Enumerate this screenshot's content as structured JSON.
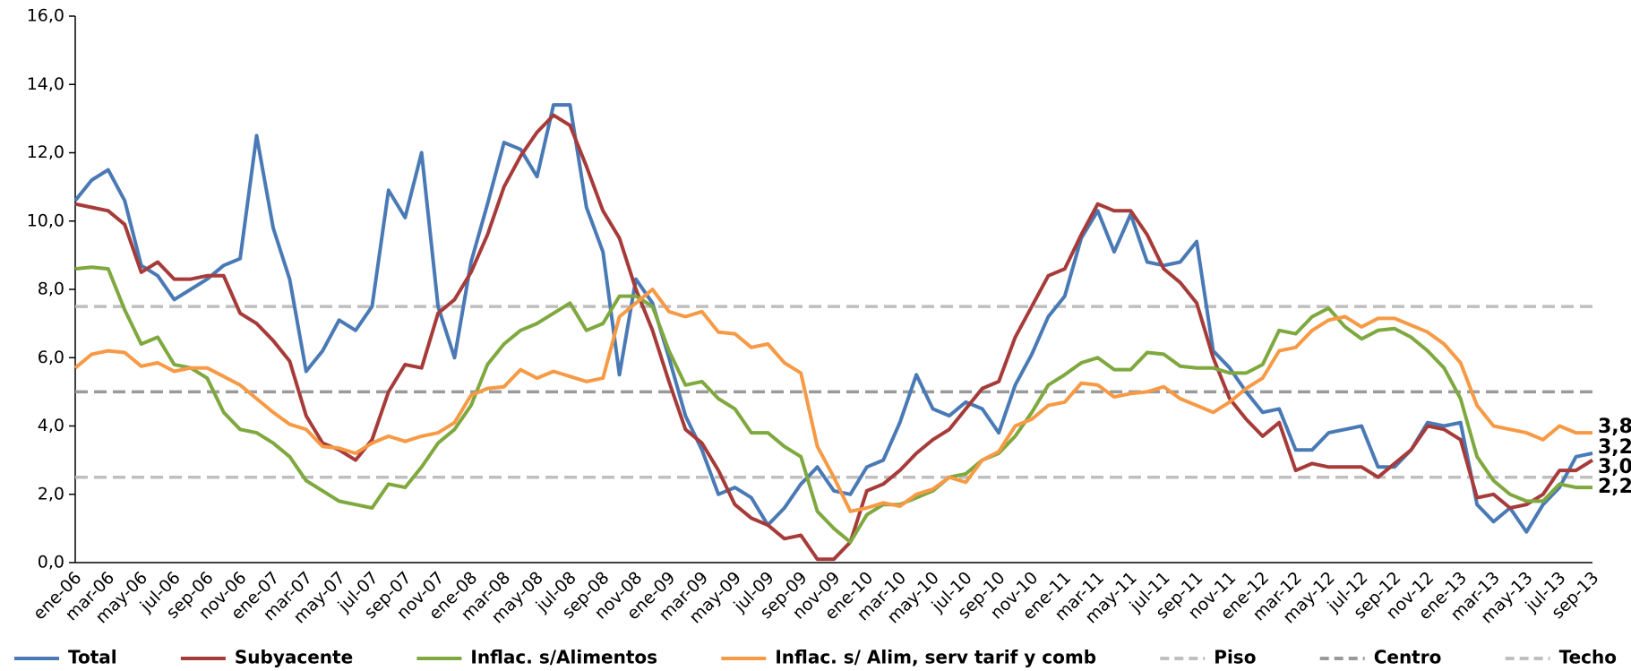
{
  "chart_data": {
    "type": "line",
    "categories": [
      "ene-06",
      null,
      "mar-06",
      null,
      "may-06",
      null,
      "jul-06",
      null,
      "sep-06",
      null,
      "nov-06",
      null,
      "ene-07",
      null,
      "mar-07",
      null,
      "may-07",
      null,
      "jul-07",
      null,
      "sep-07",
      null,
      "nov-07",
      null,
      "ene-08",
      null,
      "mar-08",
      null,
      "may-08",
      null,
      "jul-08",
      null,
      "sep-08",
      null,
      "nov-08",
      null,
      "ene-09",
      null,
      "mar-09",
      null,
      "may-09",
      null,
      "jul-09",
      null,
      "sep-09",
      null,
      "nov-09",
      null,
      "ene-10",
      null,
      "mar-10",
      null,
      "may-10",
      null,
      "jul-10",
      null,
      "sep-10",
      null,
      "nov-10",
      null,
      "ene-11",
      null,
      "mar-11",
      null,
      "may-11",
      null,
      "jul-11",
      null,
      "sep-11",
      null,
      "nov-11",
      null,
      "ene-12",
      null,
      "mar-12",
      null,
      "may-12",
      null,
      "jul-12",
      null,
      "sep-12",
      null,
      "nov-12",
      null,
      "ene-13",
      null,
      "mar-13",
      null,
      "may-13",
      null,
      "jul-13",
      null,
      "sep-13"
    ],
    "series": [
      {
        "name": "Total",
        "color": "#4a7ab5",
        "values": [
          10.6,
          11.2,
          11.5,
          10.6,
          8.7,
          8.4,
          7.7,
          8.0,
          8.3,
          8.7,
          8.9,
          12.5,
          9.8,
          8.3,
          5.6,
          6.2,
          7.1,
          6.8,
          7.5,
          10.9,
          10.1,
          12.0,
          7.5,
          6.0,
          8.8,
          10.5,
          12.3,
          12.1,
          11.3,
          13.4,
          13.4,
          10.4,
          9.1,
          5.5,
          8.3,
          7.6,
          6.0,
          4.3,
          3.3,
          2.0,
          2.2,
          1.9,
          1.1,
          1.6,
          2.3,
          2.8,
          2.1,
          2.0,
          2.8,
          3.0,
          4.1,
          5.5,
          4.5,
          4.3,
          4.7,
          4.5,
          3.8,
          5.2,
          6.1,
          7.2,
          7.8,
          9.5,
          10.3,
          9.1,
          10.2,
          8.8,
          8.7,
          8.8,
          9.4,
          6.2,
          5.7,
          5.0,
          4.4,
          4.5,
          3.3,
          3.3,
          3.8,
          3.9,
          4.0,
          2.8,
          2.8,
          3.3,
          4.1,
          4.0,
          4.1,
          1.7,
          1.2,
          1.6,
          0.9,
          1.7,
          2.2,
          3.1,
          3.2
        ],
        "value_labels": {
          "92": "3,2"
        }
      },
      {
        "name": "Subyacente",
        "color": "#a63b39",
        "values": [
          10.5,
          10.4,
          10.3,
          9.9,
          8.5,
          8.8,
          8.3,
          8.3,
          8.4,
          8.4,
          7.3,
          7.0,
          6.5,
          5.9,
          4.3,
          3.5,
          3.3,
          3.0,
          3.6,
          5.0,
          5.8,
          5.7,
          7.3,
          7.7,
          8.5,
          9.6,
          11.0,
          11.9,
          12.6,
          13.1,
          12.8,
          11.6,
          10.3,
          9.5,
          8.0,
          6.8,
          5.3,
          3.9,
          3.5,
          2.7,
          1.7,
          1.3,
          1.1,
          0.7,
          0.8,
          0.1,
          0.1,
          0.6,
          2.1,
          2.3,
          2.7,
          3.2,
          3.6,
          3.9,
          4.5,
          5.1,
          5.3,
          6.6,
          7.5,
          8.4,
          8.6,
          9.6,
          10.5,
          10.3,
          10.3,
          9.6,
          8.6,
          8.2,
          7.6,
          6.0,
          4.8,
          4.2,
          3.7,
          4.1,
          2.7,
          2.9,
          2.8,
          2.8,
          2.8,
          2.5,
          2.9,
          3.3,
          4.0,
          3.9,
          3.6,
          1.9,
          2.0,
          1.6,
          1.7,
          2.0,
          2.7,
          2.7,
          3.0
        ],
        "value_labels": {
          "92": "3,0"
        }
      },
      {
        "name": "Inflac. s/Alimentos",
        "color": "#7fa83f",
        "values": [
          8.6,
          8.65,
          8.6,
          7.4,
          6.4,
          6.6,
          5.8,
          5.7,
          5.4,
          4.4,
          3.9,
          3.8,
          3.5,
          3.1,
          2.4,
          2.1,
          1.8,
          1.7,
          1.6,
          2.3,
          2.2,
          2.8,
          3.5,
          3.9,
          4.6,
          5.8,
          6.4,
          6.8,
          7.0,
          7.3,
          7.6,
          6.8,
          7.0,
          7.8,
          7.8,
          7.5,
          6.2,
          5.2,
          5.3,
          4.8,
          4.5,
          3.8,
          3.8,
          3.4,
          3.1,
          1.5,
          1.0,
          0.6,
          1.4,
          1.7,
          1.7,
          1.9,
          2.1,
          2.5,
          2.6,
          3.0,
          3.2,
          3.7,
          4.4,
          5.2,
          5.5,
          5.85,
          6.0,
          5.65,
          5.65,
          6.15,
          6.1,
          5.75,
          5.7,
          5.7,
          5.55,
          5.55,
          5.8,
          6.8,
          6.7,
          7.2,
          7.45,
          6.9,
          6.55,
          6.8,
          6.85,
          6.6,
          6.2,
          5.7,
          4.8,
          3.1,
          2.4,
          2.0,
          1.8,
          1.8,
          2.3,
          2.2,
          2.2
        ],
        "value_labels": {
          "92": "2,2"
        }
      },
      {
        "name": "Inflac. s/ Alim, serv tarif y comb",
        "color": "#f79a45",
        "values": [
          5.7,
          6.1,
          6.2,
          6.15,
          5.75,
          5.85,
          5.6,
          5.7,
          5.7,
          5.45,
          5.2,
          4.8,
          4.4,
          4.05,
          3.9,
          3.4,
          3.35,
          3.2,
          3.5,
          3.7,
          3.55,
          3.7,
          3.8,
          4.1,
          4.9,
          5.1,
          5.15,
          5.65,
          5.4,
          5.6,
          5.45,
          5.3,
          5.4,
          7.2,
          7.6,
          8.0,
          7.35,
          7.2,
          7.35,
          6.75,
          6.7,
          6.3,
          6.4,
          5.85,
          5.55,
          3.4,
          2.5,
          1.5,
          1.6,
          1.75,
          1.65,
          2.0,
          2.15,
          2.5,
          2.35,
          3.0,
          3.25,
          4.0,
          4.2,
          4.6,
          4.7,
          5.25,
          5.2,
          4.85,
          4.95,
          5.0,
          5.15,
          4.8,
          4.6,
          4.4,
          4.7,
          5.1,
          5.4,
          6.2,
          6.3,
          6.8,
          7.1,
          7.2,
          6.9,
          7.15,
          7.15,
          6.95,
          6.75,
          6.4,
          5.85,
          4.6,
          4.0,
          3.9,
          3.8,
          3.6,
          4.0,
          3.8,
          3.8
        ],
        "value_labels": {
          "92": "3,8"
        }
      }
    ],
    "reference_lines": [
      {
        "name": "Piso",
        "color": "#bfbfbf",
        "value": 2.5
      },
      {
        "name": "Centro",
        "color": "#9a9a9a",
        "value": 5
      },
      {
        "name": "Techo",
        "color": "#bfbfbf",
        "value": 7.5
      }
    ],
    "ylim": [
      0,
      16
    ],
    "yticks": [
      {
        "value": 0,
        "label": "0,0"
      },
      {
        "value": 2,
        "label": "2,0"
      },
      {
        "value": 4,
        "label": "4,0"
      },
      {
        "value": 6,
        "label": "6,0"
      },
      {
        "value": 8,
        "label": "8,0"
      },
      {
        "value": 10,
        "label": "10,0"
      },
      {
        "value": 12,
        "label": "12,0"
      },
      {
        "value": 14,
        "label": "14,0"
      },
      {
        "value": 16,
        "label": "16,0"
      }
    ],
    "legend": "bottom"
  }
}
